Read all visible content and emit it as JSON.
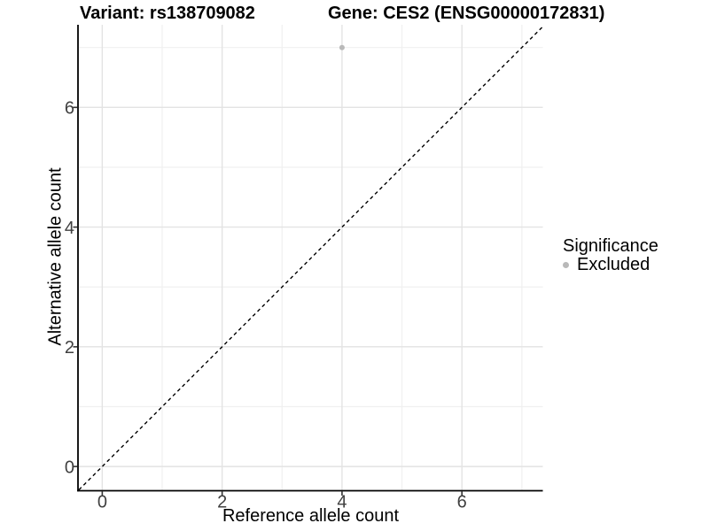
{
  "chart_data": {
    "type": "scatter",
    "title_left": "Variant: rs138709082",
    "title_right": "Gene: CES2 (ENSG00000172831)",
    "xlabel": "Reference allele count",
    "ylabel": "Alternative allele count",
    "xlim": [
      -0.39,
      7.35
    ],
    "ylim": [
      -0.39,
      7.38
    ],
    "x_major_ticks": [
      0,
      2,
      4,
      6
    ],
    "y_major_ticks": [
      0,
      2,
      4,
      6
    ],
    "x_minor_gridlines": [
      1,
      3,
      5,
      7
    ],
    "y_minor_gridlines": [
      1,
      3,
      5,
      7
    ],
    "grid": "major+minor",
    "series": [
      {
        "name": "Excluded",
        "color": "#b9b9b9",
        "points": [
          [
            4,
            7
          ]
        ]
      }
    ],
    "identity_line": {
      "slope": 1,
      "intercept": 0,
      "style": "dashed",
      "color": "#000000"
    },
    "legend": {
      "title": "Significance",
      "position": "right-middle",
      "entries": [
        {
          "label": "Excluded",
          "color": "#b9b9b9"
        }
      ]
    }
  },
  "colors": {
    "background": "#ffffff",
    "grid_major": "#e3e3e3",
    "grid_minor": "#f0f0f0",
    "axis_line": "#000000",
    "tick_mark": "#333333",
    "tick_label": "#404040"
  }
}
